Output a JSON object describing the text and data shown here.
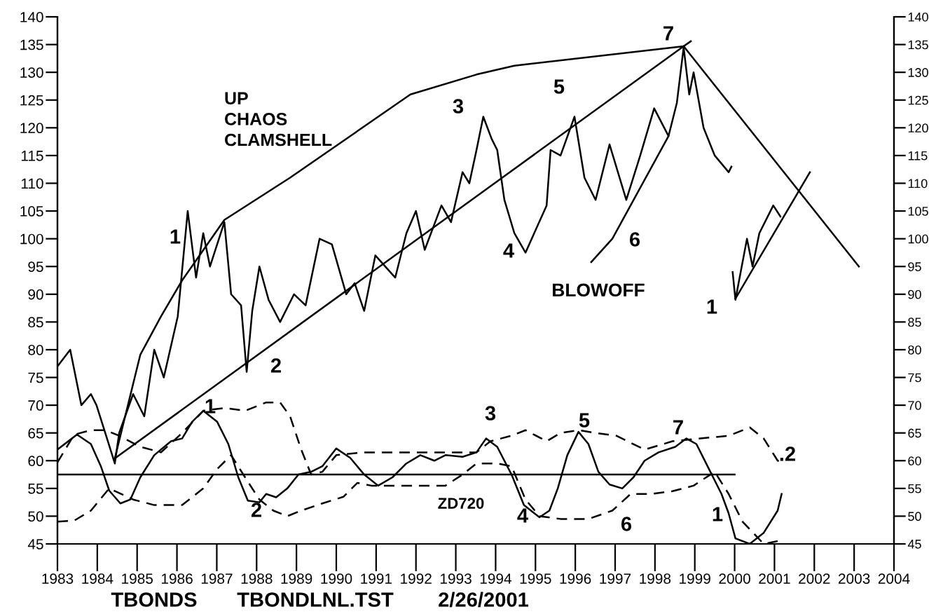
{
  "chart_data": {
    "type": "line",
    "xlim": [
      1983,
      2004
    ],
    "xticks": [
      {
        "value": 1983,
        "label": "1983"
      },
      {
        "value": 1984,
        "label": "1984"
      },
      {
        "value": 1985,
        "label": "1985"
      },
      {
        "value": 1986,
        "label": "1986"
      },
      {
        "value": 1987,
        "label": "1987"
      },
      {
        "value": 1988,
        "label": "1988"
      },
      {
        "value": 1989,
        "label": "1989"
      },
      {
        "value": 1990,
        "label": "1990"
      },
      {
        "value": 1991,
        "label": "1991"
      },
      {
        "value": 1992,
        "label": "1992"
      },
      {
        "value": 1993,
        "label": "1993"
      },
      {
        "value": 1994,
        "label": "1994"
      },
      {
        "value": 1995,
        "label": "1995"
      },
      {
        "value": 1996,
        "label": "1996"
      },
      {
        "value": 1997,
        "label": "1997"
      },
      {
        "value": 1998,
        "label": "1998"
      },
      {
        "value": 1999,
        "label": "1999"
      },
      {
        "value": 2000,
        "label": "2000"
      },
      {
        "value": 2001,
        "label": "2001"
      },
      {
        "value": 2002,
        "label": "2002"
      },
      {
        "value": 2003,
        "label": "2003"
      },
      {
        "value": 2004,
        "label": "2004"
      }
    ],
    "ylim": [
      45,
      140
    ],
    "yticks": [
      45,
      50,
      55,
      60,
      65,
      70,
      75,
      80,
      85,
      90,
      95,
      100,
      105,
      110,
      115,
      120,
      125,
      130,
      135,
      140
    ],
    "y2lim": [
      45,
      140
    ],
    "y2ticks": [
      45,
      50,
      55,
      60,
      65,
      70,
      75,
      80,
      85,
      90,
      95,
      100,
      105,
      110,
      115,
      120,
      125,
      130,
      135,
      140
    ],
    "grid": false,
    "series": [
      {
        "color": "#000000",
        "line_style": "solid",
        "x": [
          1983.0,
          1983.32,
          1983.6,
          1983.84,
          1983.98,
          1984.2,
          1984.44,
          1984.55,
          1984.9,
          1985.18,
          1985.43,
          1985.67,
          1986.02,
          1986.27,
          1986.48,
          1986.66,
          1986.83,
          1987.19,
          1987.36,
          1987.61,
          1987.75,
          1987.89,
          1988.07,
          1988.3,
          1988.59,
          1988.94,
          1989.23,
          1989.58,
          1989.89,
          1990.25,
          1990.46,
          1990.7,
          1990.98,
          1991.48,
          1991.76,
          1992.0,
          1992.22,
          1992.64,
          1992.88,
          1993.17,
          1993.34,
          1993.52,
          1993.69,
          1993.9,
          1994.04,
          1994.22,
          1994.47,
          1994.75,
          1995.28,
          1995.38,
          1995.63,
          1995.98,
          1996.23,
          1996.51,
          1996.86,
          1997.28,
          1997.63,
          1997.98,
          1998.34,
          1998.55,
          1998.72,
          1998.86,
          1998.97,
          1999.22,
          1999.5,
          1999.85,
          1999.92
        ],
        "values": [
          77,
          80,
          70,
          72,
          70,
          65,
          59.5,
          65,
          72,
          68,
          80,
          75,
          86,
          105,
          93,
          101,
          95,
          103,
          90,
          88,
          76,
          87,
          95,
          89,
          85,
          90,
          88,
          100,
          99,
          90,
          92,
          87,
          97,
          93,
          101,
          105,
          98,
          106,
          103,
          112,
          110,
          116,
          122,
          118,
          116,
          107,
          101,
          97.5,
          106,
          116,
          115,
          122,
          111,
          107,
          117,
          107,
          115,
          123.5,
          118.5,
          124.5,
          134.5,
          126,
          130,
          120,
          115,
          112,
          113
        ]
      },
      {
        "color": "#000000",
        "line_style": "solid",
        "x": [
          1999.95,
          2000.02,
          2000.31,
          2000.45,
          2000.62,
          2000.97,
          2001.15
        ],
        "values": [
          94,
          89,
          100,
          95,
          101,
          106,
          104
        ]
      },
      {
        "color": "#000000",
        "line_style": "solid",
        "x": [
          1984.44,
          1985.08,
          1985.6,
          1986.13,
          1987.19,
          1988.84,
          1991.86,
          1993.52,
          1994.47,
          1998.72,
          1998.9
        ],
        "values": [
          60.4,
          79.1,
          86,
          92.5,
          103.4,
          111,
          126,
          129.6,
          131.2,
          134.7,
          135.6
        ]
      },
      {
        "color": "#000000",
        "line_style": "solid",
        "x": [
          1984.44,
          1998.72
        ],
        "values": [
          60.4,
          134.7
        ]
      },
      {
        "color": "#000000",
        "line_style": "solid",
        "x": [
          1998.72,
          2003.12
        ],
        "values": [
          134.7,
          95
        ]
      },
      {
        "color": "#000000",
        "line_style": "solid",
        "x": [
          1996.4,
          1996.93,
          1998.34
        ],
        "values": [
          95.8,
          100,
          118.5
        ]
      },
      {
        "color": "#000000",
        "line_style": "solid",
        "x": [
          2000.02,
          2001.89
        ],
        "values": [
          89.2,
          112
        ]
      },
      {
        "color": "#000000",
        "line_style": "solid",
        "x": [
          1983.0,
          1983.49,
          1983.84,
          1984.09,
          1984.3,
          1984.58,
          1984.83,
          1985.08,
          1985.43,
          1985.85,
          1986.13,
          1986.38,
          1986.66,
          1987.01,
          1987.29,
          1987.54,
          1987.78,
          1988.07,
          1988.24,
          1988.49,
          1988.77,
          1989.05,
          1989.37,
          1989.65,
          1990.0,
          1990.35,
          1990.7,
          1991.05,
          1991.41,
          1991.76,
          1992.11,
          1992.46,
          1992.74,
          1993.17,
          1993.52,
          1993.76,
          1994.04,
          1994.4,
          1994.71,
          1995.1,
          1995.35,
          1995.56,
          1995.8,
          1996.08,
          1996.33,
          1996.58,
          1996.86,
          1997.18,
          1997.46,
          1997.74,
          1998.09,
          1998.51,
          1998.79,
          1999.04,
          1999.32,
          1999.67,
          1999.85,
          2000.02,
          2000.38,
          2000.73,
          2001.08,
          2001.18
        ],
        "values": [
          62,
          64.7,
          63,
          59,
          54.6,
          52.3,
          53,
          57,
          61,
          63.5,
          64,
          67,
          69,
          67,
          63,
          57,
          52.8,
          52.5,
          54,
          53.4,
          55,
          57.5,
          58,
          59,
          62.2,
          60.5,
          57.5,
          55.5,
          57,
          59.5,
          61,
          60,
          61,
          60.7,
          61.5,
          64,
          62.5,
          57.5,
          52,
          49.8,
          51,
          55,
          61,
          65.2,
          63,
          58,
          55.7,
          55,
          57,
          60,
          61.5,
          62.5,
          64,
          63,
          59,
          54,
          50.5,
          46,
          45,
          47,
          51,
          54
        ]
      },
      {
        "color": "#000000",
        "line_style": "dashed",
        "x": [
          1983.0,
          1983.42,
          1983.84,
          1984.2,
          1984.55,
          1985.08,
          1985.6,
          1986.13,
          1986.66,
          1987.19,
          1987.71,
          1988.24,
          1988.59,
          1988.84,
          1989.12,
          1989.37,
          1989.65,
          1990.0,
          1990.7,
          1992.11,
          1993.52,
          1993.87,
          1994.4,
          1994.75,
          1995.28,
          1995.63,
          1996.08,
          1996.51,
          1997.03,
          1997.74,
          1998.44,
          1999.14,
          1999.85,
          2000.38,
          2000.73,
          2001.08,
          2001.26
        ],
        "values": [
          59.7,
          64.7,
          65.5,
          65.5,
          64.5,
          62.5,
          61.5,
          65,
          69,
          69.5,
          69,
          70.5,
          70.5,
          68,
          62,
          57.5,
          58,
          61,
          61.5,
          61.5,
          61.5,
          63.5,
          64.5,
          65.5,
          63.5,
          65,
          65.5,
          65,
          64.5,
          62,
          63.5,
          64,
          64.5,
          66,
          64,
          60,
          59.5
        ]
      },
      {
        "color": "#000000",
        "line_style": "dashed",
        "x": [
          1983.0,
          1983.42,
          1983.84,
          1984.3,
          1984.9,
          1985.43,
          1986.13,
          1986.66,
          1987.01,
          1987.36,
          1987.71,
          1988.07,
          1988.42,
          1988.77,
          1989.12,
          1989.65,
          1990.18,
          1990.53,
          1990.88,
          1991.76,
          1992.74,
          1993.17,
          1993.52,
          1994.04,
          1994.4,
          1994.75,
          1995.1,
          1995.63,
          1996.33,
          1996.93,
          1997.39,
          1997.91,
          1998.44,
          1998.97,
          1999.5,
          1999.85,
          2000.2,
          2000.73,
          2001.08
        ],
        "values": [
          49,
          49.2,
          51,
          55,
          53,
          52,
          52,
          55,
          58.5,
          61,
          57,
          53,
          51,
          50,
          51,
          52.3,
          53.5,
          56,
          55.5,
          55.5,
          55.5,
          57.5,
          59.5,
          59.5,
          59,
          53,
          50,
          49.5,
          49.5,
          51,
          54,
          54,
          54.5,
          55.5,
          58,
          54,
          49,
          45,
          45.5
        ]
      },
      {
        "color": "#000000",
        "line_style": "solid",
        "x": [
          1983.0,
          2000.0
        ],
        "values": [
          57.5,
          57.5
        ]
      }
    ],
    "annotations": [
      "UP\nCHAOS\nCLAMSHELL",
      "1",
      "2",
      "3",
      "4",
      "5",
      "6",
      "7",
      "BLOWOFF",
      "1",
      "1",
      "2",
      "ZD720",
      "3",
      "4",
      "5",
      "6",
      "7",
      "1",
      ".2",
      "TBONDS",
      "TBONDLNL.TST",
      "2/26/2001"
    ]
  }
}
